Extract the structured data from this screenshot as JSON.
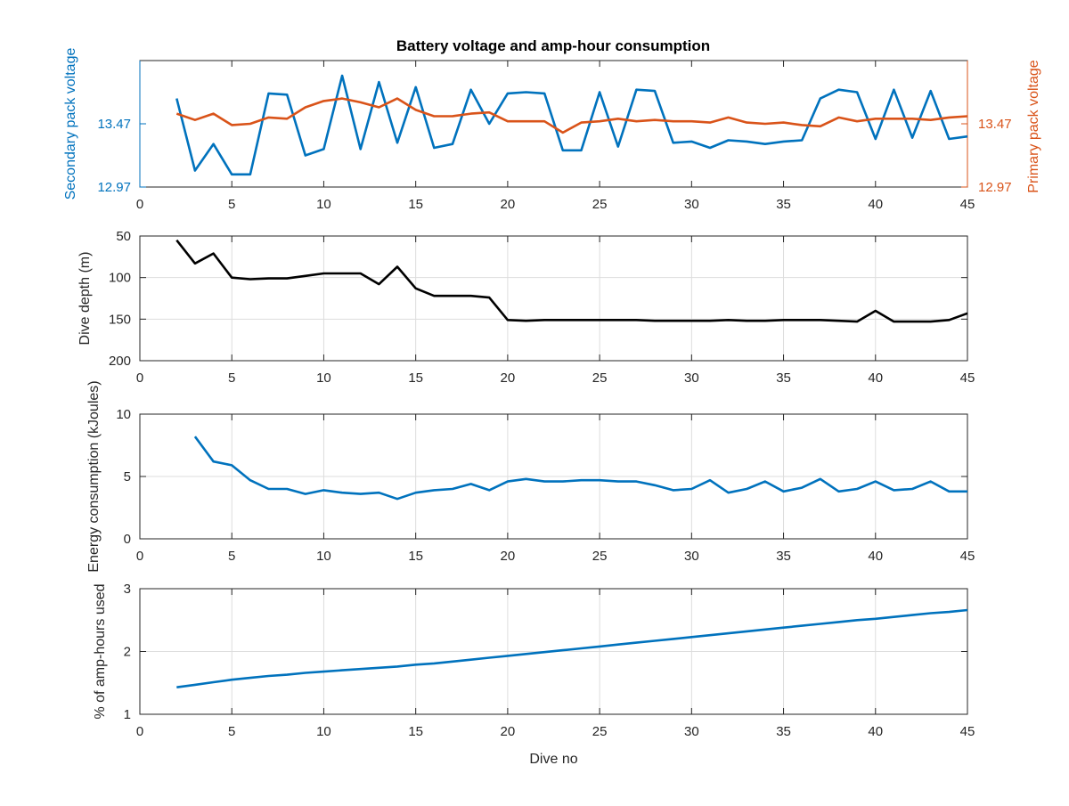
{
  "colors": {
    "blue": "#0072BD",
    "orange": "#D95319",
    "black": "#000000",
    "grid": "#dddddd",
    "axis": "#262626"
  },
  "title": "Battery voltage and amp-hour consumption",
  "shared_xlabel": "Dive no",
  "chart_data": [
    {
      "type": "line",
      "title": "Battery voltage and amp-hour consumption",
      "xlabel": "",
      "ylabel": "Secondary pack voltage",
      "y2label": "Primary pack voltage",
      "xlim": [
        0,
        45
      ],
      "ylim": [
        12.97,
        13.97
      ],
      "y2lim": [
        12.97,
        13.97
      ],
      "xticks": [
        0,
        5,
        10,
        15,
        20,
        25,
        30,
        35,
        40,
        45
      ],
      "yticks": [
        12.97,
        13.47
      ],
      "y2ticks": [
        12.97,
        13.47
      ],
      "grid": false,
      "series": [
        {
          "axis": "left",
          "color": "#0072BD",
          "x": [
            2,
            3,
            4,
            5,
            6,
            7,
            8,
            9,
            10,
            11,
            12,
            13,
            14,
            15,
            16,
            17,
            18,
            19,
            20,
            21,
            22,
            23,
            24,
            25,
            26,
            27,
            28,
            29,
            30,
            31,
            32,
            33,
            34,
            35,
            36,
            37,
            38,
            39,
            40,
            41,
            42,
            43,
            44,
            45
          ],
          "values": [
            13.67,
            13.1,
            13.31,
            13.07,
            13.07,
            13.71,
            13.7,
            13.22,
            13.27,
            13.85,
            13.27,
            13.8,
            13.32,
            13.76,
            13.28,
            13.31,
            13.74,
            13.47,
            13.71,
            13.72,
            13.71,
            13.26,
            13.26,
            13.72,
            13.29,
            13.74,
            13.73,
            13.32,
            13.33,
            13.28,
            13.34,
            13.33,
            13.31,
            13.33,
            13.34,
            13.67,
            13.74,
            13.72,
            13.35,
            13.74,
            13.36,
            13.73,
            13.35,
            13.37
          ]
        },
        {
          "axis": "right",
          "color": "#D95319",
          "x": [
            2,
            3,
            4,
            5,
            6,
            7,
            8,
            9,
            10,
            11,
            12,
            13,
            14,
            15,
            16,
            17,
            18,
            19,
            20,
            21,
            22,
            23,
            24,
            25,
            26,
            27,
            28,
            29,
            30,
            31,
            32,
            33,
            34,
            35,
            36,
            37,
            38,
            39,
            40,
            41,
            42,
            43,
            44,
            45
          ],
          "values": [
            13.55,
            13.5,
            13.55,
            13.46,
            13.47,
            13.52,
            13.51,
            13.6,
            13.65,
            13.67,
            13.64,
            13.6,
            13.67,
            13.58,
            13.53,
            13.53,
            13.55,
            13.56,
            13.49,
            13.49,
            13.49,
            13.4,
            13.48,
            13.49,
            13.51,
            13.49,
            13.5,
            13.49,
            13.49,
            13.48,
            13.52,
            13.48,
            13.47,
            13.48,
            13.46,
            13.45,
            13.52,
            13.49,
            13.51,
            13.51,
            13.51,
            13.5,
            13.52,
            13.53
          ]
        }
      ]
    },
    {
      "type": "line",
      "xlabel": "",
      "ylabel": "Dive depth (m)",
      "xlim": [
        0,
        45
      ],
      "ylim": [
        50,
        200
      ],
      "y_reversed": true,
      "xticks": [
        0,
        5,
        10,
        15,
        20,
        25,
        30,
        35,
        40,
        45
      ],
      "yticks": [
        50,
        100,
        150,
        200
      ],
      "ytick_labels": [
        "50",
        "100",
        "150",
        "200"
      ],
      "grid": true,
      "series": [
        {
          "color": "#000000",
          "x": [
            2,
            3,
            4,
            5,
            6,
            7,
            8,
            9,
            10,
            11,
            12,
            13,
            14,
            15,
            16,
            17,
            18,
            19,
            20,
            21,
            22,
            23,
            24,
            25,
            26,
            27,
            28,
            29,
            30,
            31,
            32,
            33,
            34,
            35,
            36,
            37,
            38,
            39,
            40,
            41,
            42,
            43,
            44,
            45
          ],
          "values": [
            55,
            83,
            71,
            100,
            102,
            101,
            101,
            98,
            95,
            95,
            95,
            108,
            87,
            113,
            122,
            122,
            122,
            124,
            151,
            152,
            151,
            151,
            151,
            151,
            151,
            151,
            152,
            152,
            152,
            152,
            151,
            152,
            152,
            151,
            151,
            151,
            152,
            153,
            140,
            153,
            153,
            153,
            151,
            143
          ]
        }
      ]
    },
    {
      "type": "line",
      "xlabel": "",
      "ylabel": "Energy consumption (kJoules)",
      "xlim": [
        0,
        45
      ],
      "ylim": [
        0,
        10
      ],
      "xticks": [
        0,
        5,
        10,
        15,
        20,
        25,
        30,
        35,
        40,
        45
      ],
      "yticks": [
        0,
        5,
        10
      ],
      "grid": true,
      "series": [
        {
          "color": "#0072BD",
          "x": [
            3,
            4,
            5,
            6,
            7,
            8,
            9,
            10,
            11,
            12,
            13,
            14,
            15,
            16,
            17,
            18,
            19,
            20,
            21,
            22,
            23,
            24,
            25,
            26,
            27,
            28,
            29,
            30,
            31,
            32,
            33,
            34,
            35,
            36,
            37,
            38,
            39,
            40,
            41,
            42,
            43,
            44,
            45
          ],
          "values": [
            8.2,
            6.2,
            5.9,
            4.7,
            4.0,
            4.0,
            3.6,
            3.9,
            3.7,
            3.6,
            3.7,
            3.2,
            3.7,
            3.9,
            4.0,
            4.4,
            3.9,
            4.6,
            4.8,
            4.6,
            4.6,
            4.7,
            4.7,
            4.6,
            4.6,
            4.3,
            3.9,
            4.0,
            4.7,
            3.7,
            4.0,
            4.6,
            3.8,
            4.1,
            4.8,
            3.8,
            4.0,
            4.6,
            3.9,
            4.0,
            4.6,
            3.8,
            3.8
          ]
        }
      ]
    },
    {
      "type": "line",
      "xlabel": "Dive no",
      "ylabel": "% of amp-hours used",
      "xlim": [
        0,
        45
      ],
      "ylim": [
        1,
        3
      ],
      "xticks": [
        0,
        5,
        10,
        15,
        20,
        25,
        30,
        35,
        40,
        45
      ],
      "yticks": [
        1,
        2,
        3
      ],
      "grid": true,
      "series": [
        {
          "color": "#0072BD",
          "x": [
            2,
            3,
            4,
            5,
            6,
            7,
            8,
            9,
            10,
            11,
            12,
            13,
            14,
            15,
            16,
            17,
            18,
            19,
            20,
            21,
            22,
            23,
            24,
            25,
            26,
            27,
            28,
            29,
            30,
            31,
            32,
            33,
            34,
            35,
            36,
            37,
            38,
            39,
            40,
            41,
            42,
            43,
            44,
            45
          ],
          "values": [
            1.43,
            1.47,
            1.51,
            1.55,
            1.58,
            1.61,
            1.63,
            1.66,
            1.68,
            1.7,
            1.72,
            1.74,
            1.76,
            1.79,
            1.81,
            1.84,
            1.87,
            1.9,
            1.93,
            1.96,
            1.99,
            2.02,
            2.05,
            2.08,
            2.11,
            2.14,
            2.17,
            2.2,
            2.23,
            2.26,
            2.29,
            2.32,
            2.35,
            2.38,
            2.41,
            2.44,
            2.47,
            2.5,
            2.52,
            2.55,
            2.58,
            2.61,
            2.63,
            2.66
          ]
        }
      ]
    }
  ]
}
